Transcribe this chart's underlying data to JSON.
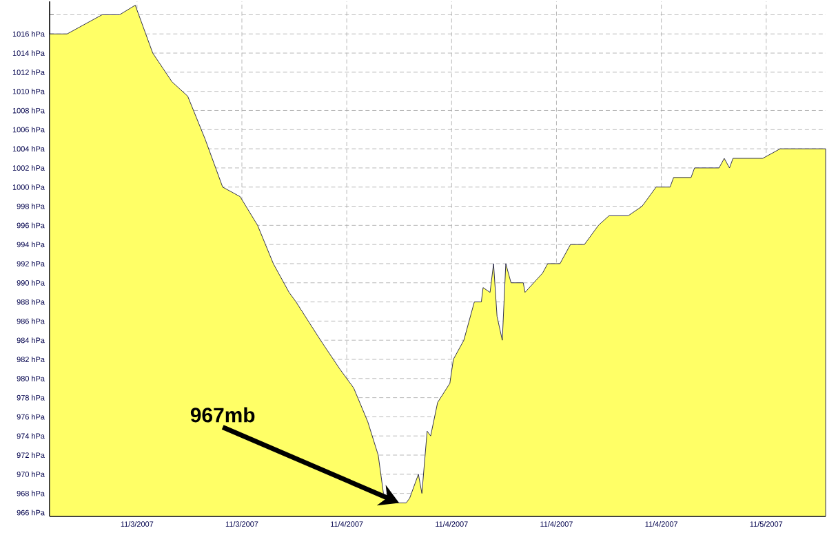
{
  "chart_data": {
    "type": "area",
    "x": [
      "2007-11-03T07:00",
      "2007-11-03T08:00",
      "2007-11-03T10:00",
      "2007-11-03T11:00",
      "2007-11-03T11:54",
      "2007-11-03T12:54",
      "2007-11-03T14:00",
      "2007-11-03T14:54",
      "2007-11-03T15:54",
      "2007-11-03T16:54",
      "2007-11-03T17:54",
      "2007-11-03T18:54",
      "2007-11-03T19:48",
      "2007-11-03T20:42",
      "2007-11-03T21:06",
      "2007-11-03T22:30",
      "2007-11-03T23:36",
      "2007-11-04T00:24",
      "2007-11-04T01:12",
      "2007-11-04T01:48",
      "2007-11-04T02:06",
      "2007-11-04T02:24",
      "2007-11-04T03:00",
      "2007-11-04T03:24",
      "2007-11-04T03:36",
      "2007-11-04T03:54",
      "2007-11-04T04:06",
      "2007-11-04T04:18",
      "2007-11-04T04:36",
      "2007-11-04T04:48",
      "2007-11-04T05:12",
      "2007-11-04T05:54",
      "2007-11-04T06:06",
      "2007-11-04T06:42",
      "2007-11-04T07:18",
      "2007-11-04T07:42",
      "2007-11-04T07:48",
      "2007-11-04T08:12",
      "2007-11-04T08:24",
      "2007-11-04T08:36",
      "2007-11-04T08:54",
      "2007-11-04T09:06",
      "2007-11-04T09:24",
      "2007-11-04T10:06",
      "2007-11-04T10:12",
      "2007-11-04T10:42",
      "2007-11-04T11:12",
      "2007-11-04T11:30",
      "2007-11-04T12:12",
      "2007-11-04T12:48",
      "2007-11-04T13:36",
      "2007-11-04T14:00",
      "2007-11-04T14:24",
      "2007-11-04T15:00",
      "2007-11-04T16:06",
      "2007-11-04T16:54",
      "2007-11-04T17:42",
      "2007-11-04T18:30",
      "2007-11-04T18:42",
      "2007-11-04T19:42",
      "2007-11-04T19:54",
      "2007-11-04T21:18",
      "2007-11-04T21:36",
      "2007-11-04T21:54",
      "2007-11-04T22:06",
      "2007-11-04T23:48",
      "2007-11-05T00:48",
      "2007-11-05T03:24"
    ],
    "series": [
      {
        "color": "#ffff66",
        "values": [
          1016,
          1016,
          1018,
          1018,
          1019,
          1014,
          1011,
          1009.5,
          1005,
          1000,
          999,
          996,
          992,
          989,
          988,
          984,
          981,
          979,
          975.5,
          972,
          968,
          967,
          967,
          967,
          967.5,
          969,
          970,
          968,
          974.5,
          974,
          977.5,
          979.5,
          982,
          984,
          988,
          988,
          989.5,
          989,
          992,
          986.5,
          984,
          992,
          990,
          990,
          989,
          990,
          991,
          992,
          992,
          994,
          994,
          995,
          996,
          997,
          997,
          998,
          1000,
          1000,
          1001,
          1001,
          1002,
          1002,
          1003,
          1002,
          1003,
          1003,
          1004,
          1004
        ]
      }
    ],
    "xlim": [
      "2007-11-03T07:00",
      "2007-11-05T03:24"
    ],
    "ylim": [
      965.6,
      1019.4
    ],
    "xticks": [
      {
        "value": "2007-11-03T12:00",
        "label": "11/3/2007"
      },
      {
        "value": "2007-11-03T18:00",
        "label": "11/3/2007"
      },
      {
        "value": "2007-11-04T00:00",
        "label": "11/4/2007"
      },
      {
        "value": "2007-11-04T06:00",
        "label": "11/4/2007"
      },
      {
        "value": "2007-11-04T12:00",
        "label": "11/4/2007"
      },
      {
        "value": "2007-11-04T18:00",
        "label": "11/4/2007"
      },
      {
        "value": "2007-11-05T00:00",
        "label": "11/5/2007"
      }
    ],
    "yticks": [
      {
        "value": 966,
        "label": "966 hPa"
      },
      {
        "value": 968,
        "label": "968 hPa"
      },
      {
        "value": 970,
        "label": "970 hPa"
      },
      {
        "value": 972,
        "label": "972 hPa"
      },
      {
        "value": 974,
        "label": "974 hPa"
      },
      {
        "value": 976,
        "label": "976 hPa"
      },
      {
        "value": 978,
        "label": "978 hPa"
      },
      {
        "value": 980,
        "label": "980 hPa"
      },
      {
        "value": 982,
        "label": "982 hPa"
      },
      {
        "value": 984,
        "label": "984 hPa"
      },
      {
        "value": 986,
        "label": "986 hPa"
      },
      {
        "value": 988,
        "label": "988 hPa"
      },
      {
        "value": 990,
        "label": "990 hPa"
      },
      {
        "value": 992,
        "label": "992 hPa"
      },
      {
        "value": 994,
        "label": "994 hPa"
      },
      {
        "value": 996,
        "label": "996 hPa"
      },
      {
        "value": 998,
        "label": "998 hPa"
      },
      {
        "value": 1000,
        "label": "1000 hPa"
      },
      {
        "value": 1002,
        "label": "1002 hPa"
      },
      {
        "value": 1004,
        "label": "1004 hPa"
      },
      {
        "value": 1006,
        "label": "1006 hPa"
      },
      {
        "value": 1008,
        "label": "1008 hPa"
      },
      {
        "value": 1010,
        "label": "1010 hPa"
      },
      {
        "value": 1012,
        "label": "1012 hPa"
      },
      {
        "value": 1014,
        "label": "1014 hPa"
      },
      {
        "value": 1016,
        "label": "1016 hPa"
      },
      {
        "value": 1018,
        "label": null
      }
    ],
    "grid": true,
    "line_style": "solid",
    "annotations": [
      {
        "text": "967mb",
        "x": "2007-11-04T03:00",
        "y": 967
      }
    ]
  }
}
